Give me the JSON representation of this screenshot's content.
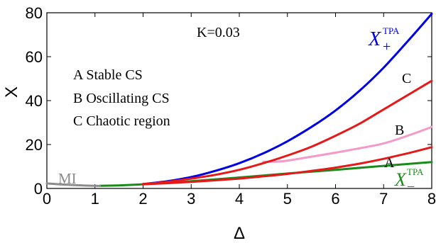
{
  "chart_data": {
    "type": "line",
    "xlabel": "Δ",
    "ylabel": "X",
    "xlim": [
      0,
      8
    ],
    "ylim": [
      0,
      80
    ],
    "xticks": [
      "0",
      "1",
      "2",
      "3",
      "4",
      "5",
      "6",
      "7",
      "8"
    ],
    "yticks": [
      "0",
      "20",
      "40",
      "60",
      "80"
    ],
    "grid": false,
    "parameter_text": "K=0.03",
    "legend_lines": [
      "A Stable CS",
      "B Oscillating CS",
      "C Chaotic region"
    ],
    "region_labels": [
      "A",
      "B",
      "C"
    ],
    "curve_labels": {
      "upper": {
        "base": "X",
        "sub": "+",
        "sup": "TPA",
        "color": "#0000e6"
      },
      "lower": {
        "base": "X",
        "sub": "−",
        "sup": "TPA",
        "color": "#1a8a1a"
      },
      "mi": {
        "text": "MI",
        "color": "#8c8c8c"
      }
    },
    "series": [
      {
        "id": "x-plus",
        "color": "#0000e6",
        "x": [
          2,
          2.5,
          3,
          3.5,
          4,
          4.5,
          5,
          5.5,
          6,
          6.5,
          7,
          7.5,
          8
        ],
        "values": [
          2,
          3.3,
          5.2,
          8,
          11.5,
          16,
          21.5,
          28,
          35.5,
          44.5,
          55,
          67,
          79.5
        ]
      },
      {
        "id": "x-minus",
        "color": "#1a8a1a",
        "x": [
          1.1,
          1.5,
          2,
          3,
          4,
          5,
          6,
          7,
          8
        ],
        "values": [
          1.2,
          1.4,
          1.9,
          3.3,
          5,
          6.8,
          8.5,
          10.3,
          12
        ]
      },
      {
        "id": "mi",
        "color": "#8c8c8c",
        "x": [
          0,
          0.25,
          0.5,
          0.75,
          1.0,
          1.1
        ],
        "values": [
          2.3,
          1.9,
          1.6,
          1.35,
          1.2,
          1.2
        ]
      },
      {
        "id": "boundary-A",
        "color": "#e61919",
        "x": [
          2,
          2.5,
          3,
          3.5,
          4,
          4.5,
          5,
          5.5,
          6,
          6.5,
          7,
          7.5,
          8
        ],
        "values": [
          1.9,
          2.4,
          3,
          3.7,
          4.5,
          5.5,
          6.6,
          8,
          9.5,
          11.3,
          13.5,
          16,
          18.8
        ]
      },
      {
        "id": "boundary-B",
        "color": "#f599c8",
        "x": [
          4.5,
          4.9,
          5.5,
          6,
          6.5,
          7,
          7.5,
          8
        ],
        "values": [
          12.2,
          12.4,
          14.5,
          16.3,
          18.3,
          20.5,
          24,
          28
        ]
      },
      {
        "id": "boundary-C",
        "color": "#e61919",
        "x": [
          2,
          2.5,
          3,
          3.5,
          4,
          4.5,
          5,
          5.5,
          6,
          6.5,
          7,
          7.5,
          8
        ],
        "values": [
          2,
          3,
          4.5,
          6.2,
          8.5,
          11.5,
          15,
          19,
          24,
          29.5,
          36,
          42.5,
          49
        ]
      }
    ]
  }
}
